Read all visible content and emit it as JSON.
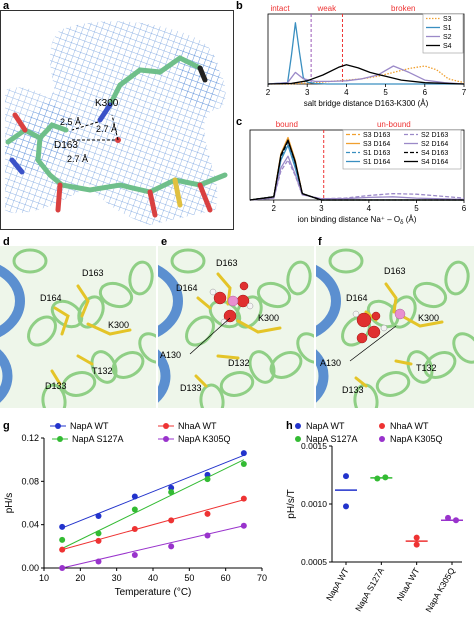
{
  "panel_labels": {
    "a": "a",
    "b": "b",
    "c": "c",
    "d": "d",
    "e": "e",
    "f": "f",
    "g": "g",
    "h": "h"
  },
  "panel_a": {
    "residues": [
      "K300",
      "D163"
    ],
    "distances": [
      "2.5 Å",
      "2.7 Å",
      "2.7 Å"
    ]
  },
  "panel_d": {
    "labels": [
      "D163",
      "D164",
      "K300",
      "T132",
      "D133"
    ]
  },
  "panel_e": {
    "labels": [
      "D163",
      "D164",
      "K300",
      "A130",
      "D132",
      "D133"
    ]
  },
  "panel_f": {
    "labels": [
      "D163",
      "D164",
      "K300",
      "A130",
      "T132",
      "D133"
    ]
  },
  "chart_data": [
    {
      "id": "b",
      "type": "line",
      "xlabel": "salt bridge distance D163-K300 (Å)",
      "ylabel": "",
      "xlim": [
        2,
        7
      ],
      "xticks": [
        2,
        3,
        4,
        5,
        6,
        7
      ],
      "region_labels": [
        "intact",
        "weak",
        "broken"
      ],
      "region_lines": [
        3.1,
        3.9
      ],
      "legend_position": "top-right",
      "series": [
        {
          "name": "S3",
          "color": "#f0a030",
          "dash": "dot",
          "x": [
            2,
            2.5,
            2.8,
            3.2,
            3.6,
            4,
            4.4,
            4.8,
            5.2,
            5.6,
            6.0,
            6.3,
            6.6,
            7
          ],
          "y": [
            0,
            0,
            0.01,
            0.02,
            0.04,
            0.06,
            0.08,
            0.12,
            0.18,
            0.24,
            0.28,
            0.22,
            0.08,
            0.02
          ]
        },
        {
          "name": "S1",
          "color": "#3a8fc0",
          "dash": "solid",
          "x": [
            2,
            2.5,
            2.6,
            2.7,
            2.8,
            2.9,
            3.0,
            3.2,
            3.5,
            4,
            7
          ],
          "y": [
            0,
            0.02,
            0.45,
            0.95,
            0.5,
            0.1,
            0.03,
            0.01,
            0,
            0,
            0
          ]
        },
        {
          "name": "S2",
          "color": "#9b89c8",
          "dash": "solid",
          "x": [
            2,
            2.5,
            2.7,
            2.9,
            3.2,
            3.6,
            4,
            4.4,
            4.8,
            5.2,
            5.6,
            6,
            6.5,
            7
          ],
          "y": [
            0,
            0.02,
            0.18,
            0.08,
            0.04,
            0.04,
            0.05,
            0.08,
            0.14,
            0.28,
            0.18,
            0.06,
            0.02,
            0
          ]
        },
        {
          "name": "S4",
          "color": "#000000",
          "dash": "solid",
          "x": [
            2,
            2.6,
            3.0,
            3.4,
            3.8,
            4.0,
            4.3,
            4.6,
            5.0,
            5.4,
            6,
            7
          ],
          "y": [
            0,
            0.01,
            0.05,
            0.14,
            0.26,
            0.3,
            0.25,
            0.18,
            0.12,
            0.06,
            0.02,
            0
          ]
        }
      ]
    },
    {
      "id": "c",
      "type": "line",
      "xlabel": "ion binding distance Na⁺ – O",
      "xlabel_sub": "δ",
      "xlabel_unit": " (Å)",
      "ylabel": "",
      "xlim": [
        1.5,
        6
      ],
      "xticks": [
        2,
        3,
        4,
        5,
        6
      ],
      "region_labels": [
        "bound",
        "un-bound"
      ],
      "region_lines": [
        3.05
      ],
      "legend_position": "top-right",
      "series": [
        {
          "name": "S3 D163",
          "color": "#f0a030",
          "dash": "dash",
          "x": [
            1.5,
            2.0,
            2.15,
            2.3,
            2.45,
            2.6,
            3.0,
            6
          ],
          "y": [
            0,
            0.05,
            0.7,
            0.95,
            0.6,
            0.1,
            0,
            0
          ]
        },
        {
          "name": "S3 D164",
          "color": "#f0a030",
          "dash": "solid",
          "x": [
            1.5,
            2.0,
            2.15,
            2.3,
            2.45,
            2.6,
            3.0,
            6
          ],
          "y": [
            0,
            0.05,
            0.72,
            0.97,
            0.62,
            0.1,
            0,
            0
          ]
        },
        {
          "name": "S1 D163",
          "color": "#3a8fc0",
          "dash": "dash",
          "x": [
            1.5,
            2.0,
            2.15,
            2.3,
            2.45,
            2.6,
            3.0,
            6
          ],
          "y": [
            0,
            0.05,
            0.65,
            0.9,
            0.55,
            0.1,
            0,
            0
          ]
        },
        {
          "name": "S1 D164",
          "color": "#3a8fc0",
          "dash": "solid",
          "x": [
            1.5,
            2.0,
            2.15,
            2.3,
            2.45,
            2.6,
            3.0,
            6
          ],
          "y": [
            0,
            0.05,
            0.62,
            0.85,
            0.5,
            0.1,
            0,
            0
          ]
        },
        {
          "name": "S2 D163",
          "color": "#9b89c8",
          "dash": "dash",
          "x": [
            1.5,
            2.0,
            2.15,
            2.3,
            2.45,
            2.6,
            3.0,
            3.5,
            4.0,
            4.5,
            5.0,
            5.5,
            6
          ],
          "y": [
            0,
            0.03,
            0.45,
            0.62,
            0.38,
            0.08,
            0.02,
            0.03,
            0.07,
            0.1,
            0.09,
            0.06,
            0.03
          ]
        },
        {
          "name": "S2 D164",
          "color": "#9b89c8",
          "dash": "solid",
          "x": [
            1.5,
            2.0,
            2.15,
            2.3,
            2.45,
            2.6,
            3.0,
            3.5,
            4.0,
            4.5,
            5.0,
            6
          ],
          "y": [
            0,
            0.03,
            0.5,
            0.68,
            0.4,
            0.08,
            0.02,
            0.02,
            0.04,
            0.05,
            0.03,
            0.01
          ]
        },
        {
          "name": "S4 D163",
          "color": "#000000",
          "dash": "dash",
          "x": [
            1.5,
            2.0,
            2.15,
            2.3,
            2.45,
            2.6,
            3.0,
            6
          ],
          "y": [
            0,
            0.05,
            0.68,
            0.92,
            0.58,
            0.1,
            0,
            0
          ]
        },
        {
          "name": "S4 D164",
          "color": "#000000",
          "dash": "solid",
          "x": [
            1.5,
            2.0,
            2.15,
            2.3,
            2.45,
            2.6,
            3.0,
            6
          ],
          "y": [
            0,
            0.05,
            0.7,
            0.93,
            0.6,
            0.1,
            0,
            0
          ]
        }
      ]
    },
    {
      "id": "g",
      "type": "scatter",
      "xlabel": "Temperature (°C)",
      "ylabel": "pH/s",
      "xlim": [
        10,
        70
      ],
      "ylim": [
        0,
        0.12
      ],
      "xticks": [
        10,
        20,
        30,
        40,
        50,
        60,
        70
      ],
      "yticks": [
        0.0,
        0.04,
        0.08,
        0.12
      ],
      "ytick_labels": [
        "0.00",
        "0.04",
        "0.08",
        "0.12"
      ],
      "legend_position": "top",
      "series": [
        {
          "name": "NapA WT",
          "color": "#2233cc",
          "x": [
            15,
            25,
            35,
            45,
            55,
            65
          ],
          "y": [
            0.038,
            0.048,
            0.066,
            0.074,
            0.086,
            0.106
          ],
          "fit": [
            [
              15,
              0.037
            ],
            [
              65,
              0.104
            ]
          ]
        },
        {
          "name": "NapA S127A",
          "color": "#33bb33",
          "x": [
            15,
            25,
            35,
            45,
            55,
            65
          ],
          "y": [
            0.026,
            0.032,
            0.054,
            0.07,
            0.082,
            0.096
          ],
          "fit": [
            [
              15,
              0.018
            ],
            [
              65,
              0.1
            ]
          ]
        },
        {
          "name": "NhaA WT",
          "color": "#ee3333",
          "x": [
            15,
            25,
            35,
            45,
            55,
            65
          ],
          "y": [
            0.017,
            0.025,
            0.036,
            0.044,
            0.05,
            0.064
          ],
          "fit": [
            [
              15,
              0.017
            ],
            [
              65,
              0.063
            ]
          ]
        },
        {
          "name": "NapA K305Q",
          "color": "#9933cc",
          "x": [
            15,
            25,
            35,
            45,
            55,
            65
          ],
          "y": [
            0.0,
            0.006,
            0.012,
            0.02,
            0.03,
            0.039
          ],
          "fit": [
            [
              15,
              -0.001
            ],
            [
              65,
              0.039
            ]
          ]
        }
      ]
    },
    {
      "id": "h",
      "type": "scatter",
      "xlabel": "",
      "ylabel": "pH/s/T",
      "ylim": [
        0.0005,
        0.0015
      ],
      "yticks": [
        0.0005,
        0.001,
        0.0015
      ],
      "ytick_labels": [
        "0.0005",
        "0.0010",
        "0.0015"
      ],
      "categories": [
        "NapA WT",
        "NapA S127A",
        "NhaA WT",
        "NapA K305Q"
      ],
      "legend_position": "top",
      "series": [
        {
          "name": "NapA WT",
          "color": "#2233cc",
          "points": [
            0.00124,
            0.00098
          ],
          "mean": 0.00112
        },
        {
          "name": "NapA S127A",
          "color": "#33bb33",
          "points": [
            0.00122,
            0.00123
          ],
          "mean": 0.001225
        },
        {
          "name": "NhaA WT",
          "color": "#ee3333",
          "points": [
            0.00071,
            0.00065
          ],
          "mean": 0.00068
        },
        {
          "name": "NapA K305Q",
          "color": "#9933cc",
          "points": [
            0.00088,
            0.00086
          ],
          "mean": 0.00086
        }
      ]
    }
  ]
}
